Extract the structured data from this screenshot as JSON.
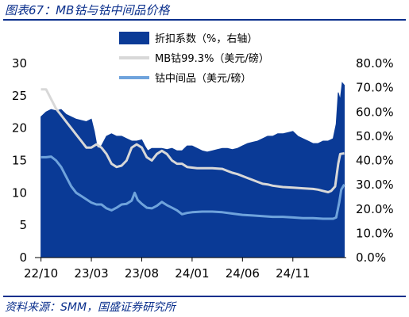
{
  "title": "图表67：MB钴与钴中间品价格",
  "source": "资料来源：SMM，国盛证券研究所",
  "colors": {
    "accent": "#0a2f8c",
    "area": "#0a3a96",
    "line_mb": "#d8d8d8",
    "line_inter": "#6fa3dc"
  },
  "chart_data": {
    "type": "area",
    "x_ticks": [
      "22/10",
      "23/03",
      "23/08",
      "24/01",
      "24/06",
      "24/11"
    ],
    "x_months": [
      0,
      5,
      10,
      15,
      20,
      25
    ],
    "left_axis": {
      "ticks": [
        "0",
        "5",
        "10",
        "15",
        "20",
        "25",
        "30"
      ],
      "ylim": [
        0,
        30
      ]
    },
    "right_axis": {
      "ticks": [
        "0.0%",
        "10.0%",
        "20.0%",
        "30.0%",
        "40.0%",
        "50.0%",
        "60.0%",
        "70.0%",
        "80.0%"
      ],
      "ylim": [
        0,
        80
      ]
    },
    "legend_position": "top-right",
    "series": [
      {
        "name": "折扣系数（%，右轴）",
        "kind": "area",
        "axis": "right",
        "points": [
          [
            0,
            58
          ],
          [
            0.5,
            60
          ],
          [
            1,
            61
          ],
          [
            1.5,
            60.5
          ],
          [
            2,
            61
          ],
          [
            2.5,
            59
          ],
          [
            3,
            58
          ],
          [
            3.5,
            57
          ],
          [
            4,
            56.5
          ],
          [
            4.5,
            56
          ],
          [
            5,
            57
          ],
          [
            5.3,
            52
          ],
          [
            5.6,
            45
          ],
          [
            6,
            46
          ],
          [
            6.5,
            50
          ],
          [
            7,
            51
          ],
          [
            7.5,
            50
          ],
          [
            8,
            50
          ],
          [
            8.5,
            49
          ],
          [
            9,
            48
          ],
          [
            9.5,
            48
          ],
          [
            10,
            48.5
          ],
          [
            10.3,
            46
          ],
          [
            10.6,
            44
          ],
          [
            11,
            45
          ],
          [
            11.5,
            45
          ],
          [
            12,
            45
          ],
          [
            12.5,
            44.5
          ],
          [
            13,
            45
          ],
          [
            13.5,
            44
          ],
          [
            14,
            44
          ],
          [
            14.5,
            46
          ],
          [
            15,
            46
          ],
          [
            15.5,
            45
          ],
          [
            16,
            44
          ],
          [
            16.5,
            43.5
          ],
          [
            17,
            44
          ],
          [
            17.5,
            44.5
          ],
          [
            18,
            45
          ],
          [
            18.5,
            45
          ],
          [
            19,
            44.5
          ],
          [
            19.5,
            45
          ],
          [
            20,
            46
          ],
          [
            20.5,
            47
          ],
          [
            21,
            47.5
          ],
          [
            21.5,
            48
          ],
          [
            22,
            49
          ],
          [
            22.5,
            50
          ],
          [
            23,
            50
          ],
          [
            23.5,
            51
          ],
          [
            24,
            51
          ],
          [
            24.5,
            51.5
          ],
          [
            25,
            52
          ],
          [
            25.5,
            50
          ],
          [
            26,
            49
          ],
          [
            26.5,
            48
          ],
          [
            27,
            47
          ],
          [
            27.5,
            47
          ],
          [
            28,
            48
          ],
          [
            28.5,
            48
          ],
          [
            29,
            49
          ],
          [
            29.3,
            55
          ],
          [
            29.5,
            68
          ],
          [
            29.7,
            65
          ],
          [
            29.9,
            72
          ],
          [
            30.1,
            71
          ]
        ]
      },
      {
        "name": "MB钴99.3%（美元/磅）",
        "kind": "line",
        "axis": "left",
        "points": [
          [
            0,
            26
          ],
          [
            0.5,
            26
          ],
          [
            1,
            24.5
          ],
          [
            1.5,
            23
          ],
          [
            2,
            22
          ],
          [
            2.5,
            21
          ],
          [
            3,
            20
          ],
          [
            3.5,
            19
          ],
          [
            4,
            18
          ],
          [
            4.5,
            17
          ],
          [
            5,
            17
          ],
          [
            5.5,
            17.5
          ],
          [
            6,
            17
          ],
          [
            6.5,
            16
          ],
          [
            7,
            14.5
          ],
          [
            7.5,
            14
          ],
          [
            8,
            14.2
          ],
          [
            8.5,
            15
          ],
          [
            9,
            17
          ],
          [
            9.5,
            17.5
          ],
          [
            10,
            17
          ],
          [
            10.5,
            15.5
          ],
          [
            11,
            15
          ],
          [
            11.5,
            16
          ],
          [
            12,
            16.5
          ],
          [
            12.5,
            16
          ],
          [
            13,
            15
          ],
          [
            13.5,
            14.5
          ],
          [
            14,
            14.5
          ],
          [
            14.5,
            14
          ],
          [
            15,
            13.9
          ],
          [
            15.5,
            13.8
          ],
          [
            16,
            13.8
          ],
          [
            17,
            13.8
          ],
          [
            18,
            13.7
          ],
          [
            18.5,
            13.4
          ],
          [
            19,
            13.1
          ],
          [
            19.5,
            12.9
          ],
          [
            20,
            12.6
          ],
          [
            20.5,
            12.3
          ],
          [
            21,
            12
          ],
          [
            21.5,
            11.7
          ],
          [
            22,
            11.4
          ],
          [
            22.5,
            11.3
          ],
          [
            23,
            11.1
          ],
          [
            24,
            10.9
          ],
          [
            25,
            10.8
          ],
          [
            26,
            10.7
          ],
          [
            27,
            10.6
          ],
          [
            27.5,
            10.5
          ],
          [
            28,
            10.3
          ],
          [
            28.5,
            10.1
          ],
          [
            28.8,
            10.3
          ],
          [
            29.2,
            11
          ],
          [
            29.5,
            14.5
          ],
          [
            29.7,
            16
          ],
          [
            30.1,
            16.1
          ]
        ]
      },
      {
        "name": "钴中间品（美元/磅）",
        "kind": "line",
        "axis": "left",
        "points": [
          [
            0,
            15.5
          ],
          [
            0.5,
            15.5
          ],
          [
            1,
            15.6
          ],
          [
            1.5,
            15
          ],
          [
            2,
            14
          ],
          [
            2.5,
            12.5
          ],
          [
            3,
            11
          ],
          [
            3.5,
            10
          ],
          [
            4,
            9.5
          ],
          [
            4.5,
            9
          ],
          [
            5,
            8.5
          ],
          [
            5.5,
            8.2
          ],
          [
            6,
            8.2
          ],
          [
            6.5,
            7.6
          ],
          [
            7,
            7.3
          ],
          [
            7.5,
            7.7
          ],
          [
            8,
            8.2
          ],
          [
            8.5,
            8.3
          ],
          [
            9,
            8.8
          ],
          [
            9.3,
            10
          ],
          [
            9.6,
            8.9
          ],
          [
            10,
            8.3
          ],
          [
            10.5,
            7.7
          ],
          [
            11,
            7.6
          ],
          [
            11.5,
            8
          ],
          [
            12,
            8.6
          ],
          [
            12.5,
            8.1
          ],
          [
            13,
            7.7
          ],
          [
            13.5,
            7.3
          ],
          [
            14,
            6.7
          ],
          [
            14.5,
            6.9
          ],
          [
            15,
            7
          ],
          [
            16,
            7.1
          ],
          [
            17,
            7.1
          ],
          [
            18,
            7
          ],
          [
            19,
            6.8
          ],
          [
            20,
            6.6
          ],
          [
            21,
            6.5
          ],
          [
            22,
            6.4
          ],
          [
            23,
            6.3
          ],
          [
            24,
            6.3
          ],
          [
            25,
            6.2
          ],
          [
            26,
            6.1
          ],
          [
            27,
            6.1
          ],
          [
            28,
            6
          ],
          [
            29,
            6
          ],
          [
            29.3,
            6.2
          ],
          [
            29.6,
            8.5
          ],
          [
            29.8,
            10.5
          ],
          [
            30.1,
            11.3
          ]
        ]
      }
    ]
  }
}
